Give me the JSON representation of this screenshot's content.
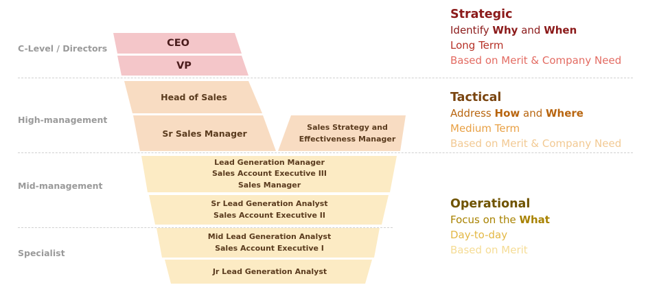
{
  "colors": {
    "ceo_fill": "#f4c6c9",
    "vp_fill": "#f4c6c9",
    "high_fill": "#f8dcc2",
    "lower_fill": "#fcebc4",
    "strategic": "#8b1a1a",
    "strategic_light": "#e36b62",
    "tactical": "#8a4b0f",
    "tactical_mid": "#e8a044",
    "tactical_light": "#f2c993",
    "operational": "#7a5a00",
    "operational_mid": "#e3b845",
    "operational_light": "#f5dc95"
  },
  "levels": [
    "C-Level / Directors",
    "High-management",
    "Mid-management",
    "Specialist"
  ],
  "boxes": {
    "ceo": "CEO",
    "vp": "VP",
    "head_of_sales": "Head of Sales",
    "sr_sales_manager": "Sr Sales Manager",
    "sales_strategy": [
      "Sales Strategy and",
      "Effectiveness Manager"
    ],
    "mid_top": [
      "Lead Generation Manager",
      "Sales Account Executive III",
      "Sales Manager"
    ],
    "mid_bottom": [
      "Sr Lead Generation Analyst",
      "Sales Account Executive II"
    ],
    "spec_top": [
      "Mid Lead Generation Analyst",
      "Sales Account Executive I"
    ],
    "spec_bottom": "Jr Lead Generation Analyst"
  },
  "sections": {
    "strategic": {
      "heading": "Strategic",
      "line1_pre": "Identify ",
      "line1_b1": "Why",
      "line1_mid": " and ",
      "line1_b2": "When",
      "line2": "Long Term",
      "line3": "Based on Merit & Company Need"
    },
    "tactical": {
      "heading": "Tactical",
      "line1_pre": "Address ",
      "line1_b1": "How",
      "line1_mid": " and ",
      "line1_b2": "Where",
      "line2": "Medium Term",
      "line3": "Based on Merit & Company Need"
    },
    "operational": {
      "heading": "Operational",
      "line1_pre": "Focus on the ",
      "line1_b1": "What",
      "line2": "Day-to-day",
      "line3": "Based on Merit"
    }
  }
}
